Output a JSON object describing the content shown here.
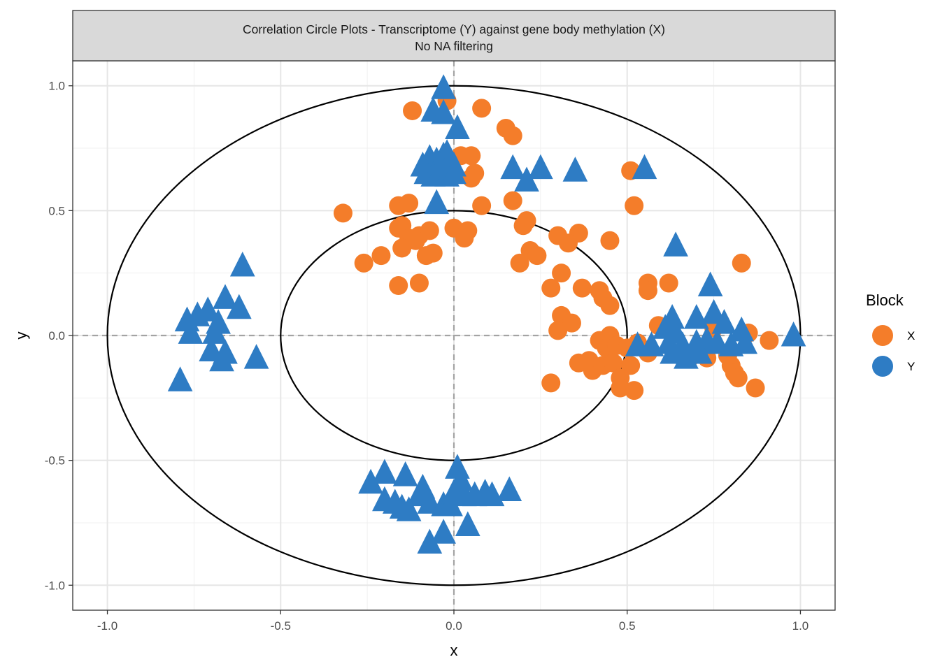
{
  "chart_data": {
    "type": "scatter",
    "title": "Correlation Circle Plots - Transcriptome (Y) against gene body methylation (X)",
    "subtitle": "No NA filtering",
    "xlabel": "x",
    "ylabel": "y",
    "xlim": [
      -1.1,
      1.1
    ],
    "ylim": [
      -1.1,
      1.1
    ],
    "x_ticks": [
      -1.0,
      -0.5,
      0.0,
      0.5,
      1.0
    ],
    "y_ticks": [
      -1.0,
      -0.5,
      0.0,
      0.5,
      1.0
    ],
    "x_tick_labels": [
      "-1.0",
      "-0.5",
      "0.0",
      "0.5",
      "1.0"
    ],
    "y_tick_labels": [
      "-1.0",
      "-0.5",
      "0.0",
      "0.5",
      "1.0"
    ],
    "grid": true,
    "circles": [
      {
        "radius": 1.0
      },
      {
        "radius": 0.5
      }
    ],
    "reference_lines": [
      "x=0",
      "y=0"
    ],
    "legend": {
      "title": "Block",
      "placement": "right",
      "entries": [
        "X",
        "Y"
      ]
    },
    "series": [
      {
        "name": "X",
        "shape": "circle",
        "color": "#F47D2A",
        "points": [
          [
            -0.02,
            0.94
          ],
          [
            -0.12,
            0.9
          ],
          [
            0.08,
            0.91
          ],
          [
            0.15,
            0.83
          ],
          [
            0.17,
            0.8
          ],
          [
            0.02,
            0.72
          ],
          [
            0.05,
            0.72
          ],
          [
            0.06,
            0.65
          ],
          [
            0.05,
            0.63
          ],
          [
            -0.03,
            0.66
          ],
          [
            0.51,
            0.66
          ],
          [
            0.52,
            0.52
          ],
          [
            -0.32,
            0.49
          ],
          [
            -0.16,
            0.52
          ],
          [
            -0.13,
            0.53
          ],
          [
            0.08,
            0.52
          ],
          [
            0.17,
            0.54
          ],
          [
            0.21,
            0.46
          ],
          [
            0.2,
            0.44
          ],
          [
            -0.15,
            0.44
          ],
          [
            -0.16,
            0.43
          ],
          [
            -0.1,
            0.4
          ],
          [
            -0.07,
            0.42
          ],
          [
            -0.13,
            0.39
          ],
          [
            -0.11,
            0.38
          ],
          [
            0.0,
            0.43
          ],
          [
            0.04,
            0.42
          ],
          [
            0.03,
            0.39
          ],
          [
            0.3,
            0.4
          ],
          [
            0.36,
            0.41
          ],
          [
            0.33,
            0.37
          ],
          [
            0.45,
            0.38
          ],
          [
            -0.15,
            0.35
          ],
          [
            -0.06,
            0.33
          ],
          [
            -0.08,
            0.32
          ],
          [
            -0.21,
            0.32
          ],
          [
            -0.26,
            0.29
          ],
          [
            0.22,
            0.34
          ],
          [
            0.24,
            0.32
          ],
          [
            0.19,
            0.29
          ],
          [
            0.31,
            0.25
          ],
          [
            -0.16,
            0.2
          ],
          [
            -0.1,
            0.21
          ],
          [
            0.28,
            0.19
          ],
          [
            0.37,
            0.19
          ],
          [
            0.42,
            0.18
          ],
          [
            0.43,
            0.15
          ],
          [
            0.45,
            0.12
          ],
          [
            0.56,
            0.21
          ],
          [
            0.62,
            0.21
          ],
          [
            0.56,
            0.18
          ],
          [
            0.31,
            0.08
          ],
          [
            0.34,
            0.05
          ],
          [
            0.3,
            0.02
          ],
          [
            0.59,
            0.04
          ],
          [
            0.75,
            0.03
          ],
          [
            0.83,
            0.29
          ],
          [
            0.85,
            0.01
          ],
          [
            0.91,
            -0.02
          ],
          [
            0.42,
            -0.02
          ],
          [
            0.45,
            0.0
          ],
          [
            0.44,
            -0.05
          ],
          [
            0.47,
            -0.04
          ],
          [
            0.5,
            -0.05
          ],
          [
            0.53,
            -0.03
          ],
          [
            0.36,
            -0.11
          ],
          [
            0.39,
            -0.1
          ],
          [
            0.4,
            -0.14
          ],
          [
            0.43,
            -0.12
          ],
          [
            0.46,
            -0.11
          ],
          [
            0.51,
            -0.12
          ],
          [
            0.56,
            -0.07
          ],
          [
            0.68,
            -0.09
          ],
          [
            0.73,
            -0.09
          ],
          [
            0.79,
            -0.08
          ],
          [
            0.8,
            -0.12
          ],
          [
            0.81,
            -0.15
          ],
          [
            0.82,
            -0.17
          ],
          [
            0.87,
            -0.21
          ],
          [
            0.28,
            -0.19
          ],
          [
            0.48,
            -0.17
          ],
          [
            0.48,
            -0.21
          ],
          [
            0.52,
            -0.22
          ]
        ]
      },
      {
        "name": "Y",
        "shape": "triangle",
        "color": "#2E7CC4",
        "points": [
          [
            -0.03,
            0.99
          ],
          [
            -0.06,
            0.9
          ],
          [
            -0.03,
            0.89
          ],
          [
            0.01,
            0.83
          ],
          [
            -0.09,
            0.68
          ],
          [
            -0.07,
            0.71
          ],
          [
            -0.05,
            0.7
          ],
          [
            -0.03,
            0.72
          ],
          [
            -0.02,
            0.73
          ],
          [
            -0.01,
            0.7
          ],
          [
            0.0,
            0.68
          ],
          [
            -0.08,
            0.65
          ],
          [
            -0.06,
            0.64
          ],
          [
            -0.04,
            0.66
          ],
          [
            -0.02,
            0.64
          ],
          [
            0.0,
            0.65
          ],
          [
            -0.05,
            0.53
          ],
          [
            0.17,
            0.67
          ],
          [
            0.25,
            0.67
          ],
          [
            0.35,
            0.66
          ],
          [
            0.21,
            0.62
          ],
          [
            0.55,
            0.67
          ],
          [
            0.64,
            0.36
          ],
          [
            -0.61,
            0.28
          ],
          [
            -0.66,
            0.15
          ],
          [
            -0.71,
            0.1
          ],
          [
            -0.74,
            0.08
          ],
          [
            -0.77,
            0.06
          ],
          [
            -0.62,
            0.11
          ],
          [
            -0.68,
            0.05
          ],
          [
            -0.69,
            0.01
          ],
          [
            -0.76,
            0.01
          ],
          [
            -0.7,
            -0.06
          ],
          [
            -0.66,
            -0.07
          ],
          [
            -0.67,
            -0.1
          ],
          [
            -0.57,
            -0.09
          ],
          [
            -0.79,
            -0.18
          ],
          [
            0.74,
            0.2
          ],
          [
            0.63,
            0.07
          ],
          [
            0.7,
            0.07
          ],
          [
            0.75,
            0.09
          ],
          [
            0.78,
            0.05
          ],
          [
            0.83,
            0.02
          ],
          [
            0.61,
            0.03
          ],
          [
            0.64,
            0.01
          ],
          [
            0.53,
            -0.04
          ],
          [
            0.57,
            -0.04
          ],
          [
            0.62,
            -0.03
          ],
          [
            0.66,
            -0.04
          ],
          [
            0.7,
            -0.03
          ],
          [
            0.73,
            -0.02
          ],
          [
            0.76,
            -0.03
          ],
          [
            0.8,
            -0.04
          ],
          [
            0.84,
            -0.03
          ],
          [
            0.63,
            -0.07
          ],
          [
            0.67,
            -0.09
          ],
          [
            0.71,
            -0.07
          ],
          [
            0.98,
            0.0
          ],
          [
            0.01,
            -0.53
          ],
          [
            0.02,
            -0.58
          ],
          [
            -0.2,
            -0.55
          ],
          [
            -0.14,
            -0.56
          ],
          [
            -0.24,
            -0.59
          ],
          [
            -0.09,
            -0.61
          ],
          [
            -0.2,
            -0.66
          ],
          [
            -0.17,
            -0.67
          ],
          [
            -0.15,
            -0.69
          ],
          [
            -0.13,
            -0.7
          ],
          [
            -0.1,
            -0.64
          ],
          [
            -0.07,
            -0.67
          ],
          [
            -0.03,
            -0.68
          ],
          [
            -0.01,
            -0.68
          ],
          [
            0.0,
            -0.63
          ],
          [
            0.03,
            -0.64
          ],
          [
            0.06,
            -0.64
          ],
          [
            0.09,
            -0.63
          ],
          [
            0.11,
            -0.64
          ],
          [
            0.16,
            -0.62
          ],
          [
            0.04,
            -0.76
          ],
          [
            -0.03,
            -0.79
          ],
          [
            -0.07,
            -0.83
          ]
        ]
      }
    ]
  }
}
